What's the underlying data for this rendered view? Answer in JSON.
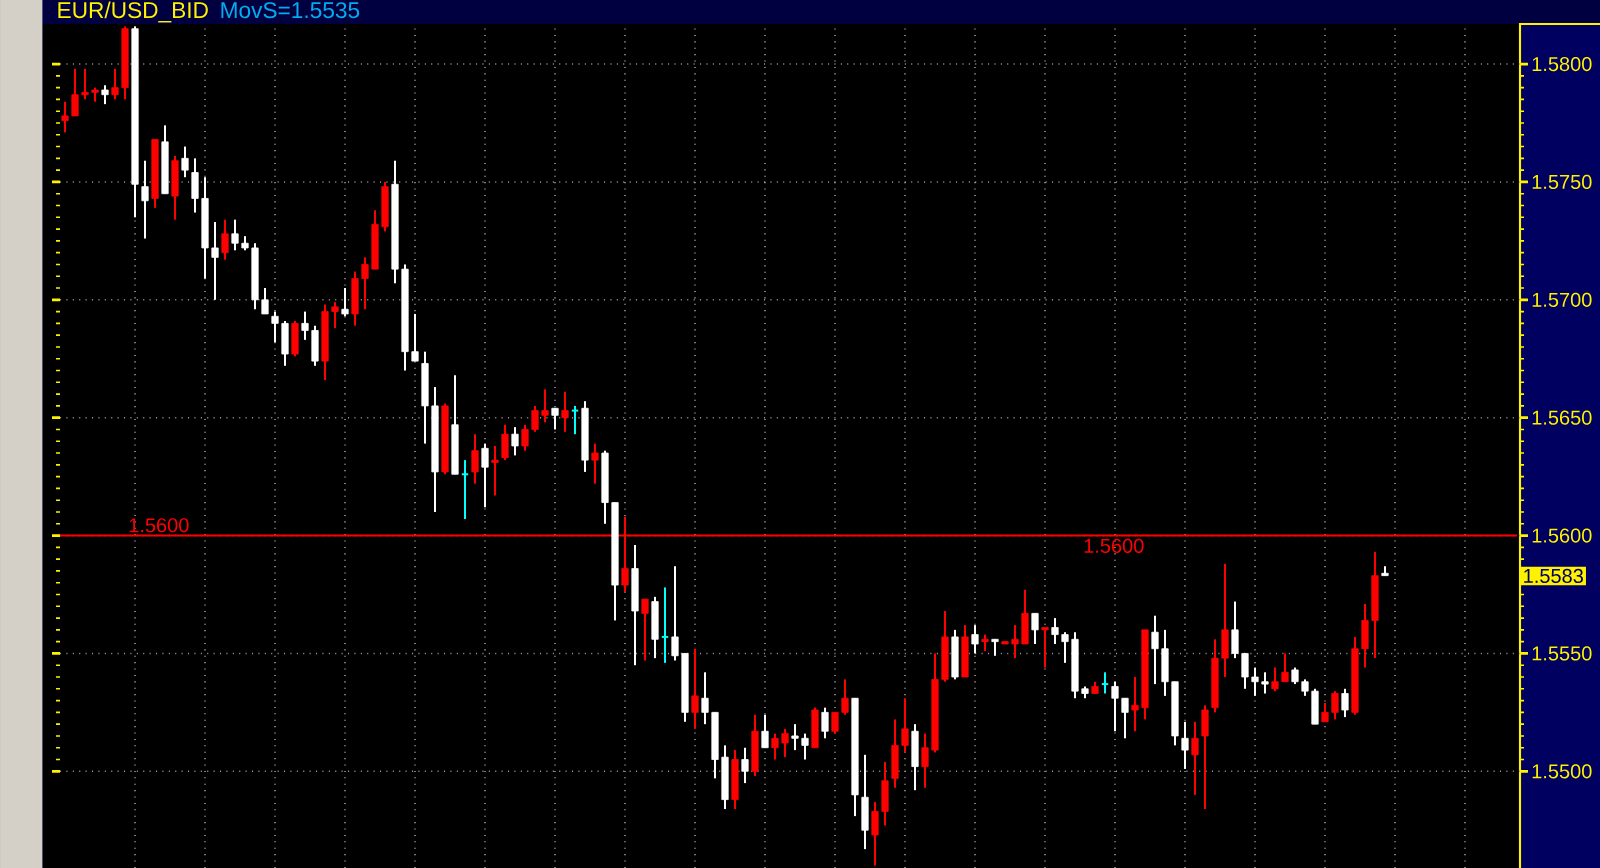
{
  "chart_data": {
    "type": "candlestick",
    "title": "EUR/USD_BID",
    "subtitle": "MovS=1.5535",
    "categories": [
      null,
      null,
      null,
      null,
      null,
      null,
      null,
      null,
      null,
      null,
      null,
      null,
      null,
      null,
      null,
      null,
      null,
      null,
      null,
      null,
      null,
      null,
      null,
      null,
      null,
      null,
      null,
      null,
      null,
      null,
      null,
      null,
      null,
      null,
      null,
      null,
      null,
      null,
      null,
      null,
      null,
      null,
      null,
      null,
      null,
      null,
      null,
      null,
      null,
      null,
      null,
      null,
      null,
      null,
      null,
      null,
      null,
      null,
      null,
      null,
      null,
      null,
      null,
      null,
      null,
      null,
      null,
      null,
      null,
      null,
      null,
      null,
      null,
      null,
      null,
      null,
      null,
      null,
      null,
      null,
      null,
      null,
      null,
      null,
      null,
      null,
      null,
      null,
      null,
      null,
      null,
      null,
      null,
      null,
      null,
      null,
      null,
      null,
      null,
      null,
      null,
      null,
      null,
      null,
      null,
      null,
      null,
      null,
      null,
      null,
      null,
      null,
      null,
      null,
      null,
      null,
      null,
      null,
      null,
      null,
      null,
      null,
      null,
      null,
      null,
      null,
      null,
      null,
      null,
      null,
      null,
      null,
      null,
      null,
      null,
      null,
      null,
      null,
      null,
      null,
      null,
      null,
      null,
      null,
      null,
      null
    ],
    "ohlc": [
      [
        1.5776,
        1.5784,
        1.5771,
        1.5778
      ],
      [
        1.5778,
        1.5798,
        1.5778,
        1.5787
      ],
      [
        1.5787,
        1.5798,
        1.5785,
        1.5788
      ],
      [
        1.5788,
        1.579,
        1.5784,
        1.5789
      ],
      [
        1.5789,
        1.5791,
        1.5783,
        1.5787
      ],
      [
        1.5787,
        1.5798,
        1.5785,
        1.579
      ],
      [
        1.579,
        1.5816,
        1.5785,
        1.5815
      ],
      [
        1.5815,
        1.5816,
        1.5735,
        1.5749
      ],
      [
        1.5748,
        1.5759,
        1.5726,
        1.5742
      ],
      [
        1.5743,
        1.5768,
        1.5739,
        1.5768
      ],
      [
        1.5767,
        1.5774,
        1.5745,
        1.5745
      ],
      [
        1.5744,
        1.5761,
        1.5734,
        1.5759
      ],
      [
        1.576,
        1.5765,
        1.5752,
        1.5755
      ],
      [
        1.5754,
        1.576,
        1.5737,
        1.5743
      ],
      [
        1.5743,
        1.5752,
        1.5709,
        1.5722
      ],
      [
        1.5722,
        1.5733,
        1.57,
        1.5718
      ],
      [
        1.572,
        1.5734,
        1.5717,
        1.5728
      ],
      [
        1.5728,
        1.5734,
        1.5721,
        1.5724
      ],
      [
        1.5724,
        1.5727,
        1.5721,
        1.5722
      ],
      [
        1.5722,
        1.5724,
        1.5696,
        1.57
      ],
      [
        1.57,
        1.5705,
        1.5694,
        1.5694
      ],
      [
        1.5693,
        1.5695,
        1.5682,
        1.569
      ],
      [
        1.569,
        1.5691,
        1.5672,
        1.5677
      ],
      [
        1.5677,
        1.5691,
        1.5676,
        1.569
      ],
      [
        1.569,
        1.5695,
        1.5683,
        1.5687
      ],
      [
        1.5687,
        1.5689,
        1.5672,
        1.5674
      ],
      [
        1.5674,
        1.5698,
        1.5666,
        1.5695
      ],
      [
        1.5695,
        1.5699,
        1.5688,
        1.5697
      ],
      [
        1.5696,
        1.5705,
        1.5693,
        1.5694
      ],
      [
        1.5694,
        1.5712,
        1.5689,
        1.5709
      ],
      [
        1.5709,
        1.5718,
        1.5696,
        1.5715
      ],
      [
        1.5713,
        1.5738,
        1.5713,
        1.5732
      ],
      [
        1.5731,
        1.575,
        1.5729,
        1.5748
      ],
      [
        1.5749,
        1.5759,
        1.5707,
        1.5713
      ],
      [
        1.5713,
        1.5715,
        1.567,
        1.5678
      ],
      [
        1.5678,
        1.5694,
        1.5674,
        1.5674
      ],
      [
        1.5673,
        1.5678,
        1.5639,
        1.5655
      ],
      [
        1.5655,
        1.5663,
        1.561,
        1.5627
      ],
      [
        1.5627,
        1.5656,
        1.5626,
        1.5655
      ],
      [
        1.5647,
        1.5668,
        1.5626,
        1.5626
      ],
      [
        1.5626,
        1.5632,
        1.5607,
        1.5626
      ],
      [
        1.5627,
        1.5643,
        1.5622,
        1.5636
      ],
      [
        1.5637,
        1.5639,
        1.5612,
        1.5629
      ],
      [
        1.5631,
        1.5638,
        1.5617,
        1.5632
      ],
      [
        1.5633,
        1.5647,
        1.5632,
        1.5643
      ],
      [
        1.5643,
        1.5646,
        1.5634,
        1.5638
      ],
      [
        1.5638,
        1.5647,
        1.5636,
        1.5645
      ],
      [
        1.5645,
        1.5655,
        1.5644,
        1.5653
      ],
      [
        1.5651,
        1.5662,
        1.5648,
        1.5653
      ],
      [
        1.5654,
        1.5654,
        1.5645,
        1.5651
      ],
      [
        1.565,
        1.5661,
        1.5644,
        1.5653
      ],
      [
        1.5653,
        1.5655,
        1.5643,
        1.5653
      ],
      [
        1.5654,
        1.5657,
        1.5627,
        1.5632
      ],
      [
        1.5632,
        1.5639,
        1.5622,
        1.5635
      ],
      [
        1.5635,
        1.5636,
        1.5605,
        1.5614
      ],
      [
        1.5614,
        1.5614,
        1.5564,
        1.5579
      ],
      [
        1.5579,
        1.5608,
        1.5576,
        1.5586
      ],
      [
        1.5586,
        1.5596,
        1.5545,
        1.5568
      ],
      [
        1.5567,
        1.5573,
        1.5547,
        1.5573
      ],
      [
        1.5572,
        1.5574,
        1.5548,
        1.5556
      ],
      [
        1.5557,
        1.5578,
        1.5546,
        1.5557
      ],
      [
        1.5557,
        1.5587,
        1.5547,
        1.5549
      ],
      [
        1.555,
        1.555,
        1.5521,
        1.5525
      ],
      [
        1.5525,
        1.5552,
        1.5518,
        1.5532
      ],
      [
        1.5531,
        1.5542,
        1.552,
        1.5525
      ],
      [
        1.5525,
        1.5525,
        1.5497,
        1.5505
      ],
      [
        1.5506,
        1.5511,
        1.5484,
        1.5488
      ],
      [
        1.5488,
        1.5509,
        1.5484,
        1.5505
      ],
      [
        1.5505,
        1.551,
        1.5495,
        1.55
      ],
      [
        1.55,
        1.5524,
        1.5498,
        1.5517
      ],
      [
        1.5517,
        1.5524,
        1.551,
        1.551
      ],
      [
        1.551,
        1.5516,
        1.5505,
        1.5514
      ],
      [
        1.5512,
        1.5518,
        1.5506,
        1.5516
      ],
      [
        1.5515,
        1.552,
        1.5509,
        1.5514
      ],
      [
        1.5514,
        1.5516,
        1.5505,
        1.5511
      ],
      [
        1.551,
        1.5527,
        1.551,
        1.5526
      ],
      [
        1.5525,
        1.5527,
        1.5514,
        1.5517
      ],
      [
        1.5517,
        1.5525,
        1.5516,
        1.5525
      ],
      [
        1.5525,
        1.5539,
        1.5524,
        1.5531
      ],
      [
        1.5531,
        1.5531,
        1.5481,
        1.549
      ],
      [
        1.5489,
        1.5507,
        1.5467,
        1.5475
      ],
      [
        1.5473,
        1.5487,
        1.546,
        1.5483
      ],
      [
        1.5483,
        1.5504,
        1.5477,
        1.5496
      ],
      [
        1.5497,
        1.5522,
        1.5493,
        1.5511
      ],
      [
        1.5511,
        1.5531,
        1.5508,
        1.5518
      ],
      [
        1.5517,
        1.552,
        1.5492,
        1.5502
      ],
      [
        1.5502,
        1.5516,
        1.5493,
        1.551
      ],
      [
        1.5509,
        1.555,
        1.5508,
        1.5539
      ],
      [
        1.5539,
        1.5568,
        1.5538,
        1.5557
      ],
      [
        1.5557,
        1.556,
        1.5539,
        1.554
      ],
      [
        1.554,
        1.5562,
        1.554,
        1.5557
      ],
      [
        1.5558,
        1.5562,
        1.555,
        1.5554
      ],
      [
        1.5555,
        1.5558,
        1.5551,
        1.5556
      ],
      [
        1.5556,
        1.5556,
        1.5549,
        1.5555
      ],
      [
        1.5554,
        1.5555,
        1.5554,
        1.5555
      ],
      [
        1.5554,
        1.5562,
        1.5548,
        1.5556
      ],
      [
        1.5554,
        1.5577,
        1.5554,
        1.5567
      ],
      [
        1.5567,
        1.5567,
        1.5554,
        1.556
      ],
      [
        1.556,
        1.5561,
        1.5544,
        1.5561
      ],
      [
        1.5561,
        1.5565,
        1.5554,
        1.5558
      ],
      [
        1.5558,
        1.5559,
        1.5546,
        1.5555
      ],
      [
        1.5556,
        1.5559,
        1.5531,
        1.5534
      ],
      [
        1.5535,
        1.5536,
        1.5531,
        1.5533
      ],
      [
        1.5533,
        1.5538,
        1.5533,
        1.5536
      ],
      [
        1.5537,
        1.5542,
        1.5533,
        1.5537
      ],
      [
        1.5536,
        1.5538,
        1.5517,
        1.5531
      ],
      [
        1.5531,
        1.5531,
        1.5514,
        1.5525
      ],
      [
        1.5526,
        1.554,
        1.5517,
        1.5528
      ],
      [
        1.5527,
        1.556,
        1.5522,
        1.556
      ],
      [
        1.5559,
        1.5566,
        1.5537,
        1.5552
      ],
      [
        1.5552,
        1.556,
        1.5532,
        1.5538
      ],
      [
        1.5538,
        1.5538,
        1.5511,
        1.5515
      ],
      [
        1.5514,
        1.5521,
        1.5501,
        1.5509
      ],
      [
        1.5507,
        1.5521,
        1.549,
        1.5514
      ],
      [
        1.5515,
        1.5528,
        1.5484,
        1.5526
      ],
      [
        1.5527,
        1.5556,
        1.5525,
        1.5548
      ],
      [
        1.5548,
        1.5588,
        1.554,
        1.556
      ],
      [
        1.556,
        1.5572,
        1.5548,
        1.555
      ],
      [
        1.555,
        1.555,
        1.5535,
        1.554
      ],
      [
        1.554,
        1.5544,
        1.5532,
        1.5538
      ],
      [
        1.5538,
        1.5542,
        1.5533,
        1.5537
      ],
      [
        1.5535,
        1.5544,
        1.5534,
        1.5538
      ],
      [
        1.5538,
        1.555,
        1.5538,
        1.5542
      ],
      [
        1.5543,
        1.5544,
        1.5537,
        1.5538
      ],
      [
        1.5538,
        1.5539,
        1.5532,
        1.5534
      ],
      [
        1.5534,
        1.5535,
        1.552,
        1.552
      ],
      [
        1.5521,
        1.5529,
        1.5521,
        1.5525
      ],
      [
        1.5525,
        1.5534,
        1.5522,
        1.5533
      ],
      [
        1.5533,
        1.5535,
        1.5523,
        1.5526
      ],
      [
        1.5525,
        1.5557,
        1.5524,
        1.5552
      ],
      [
        1.5552,
        1.5571,
        1.5544,
        1.5564
      ],
      [
        1.5564,
        1.5593,
        1.5548,
        1.5583
      ],
      [
        1.5584,
        1.5587,
        1.5583,
        1.5583
      ],
      null,
      null,
      null,
      null,
      null,
      null,
      null,
      null,
      null,
      null,
      null,
      null,
      null
    ],
    "colors": [
      "#ff0000",
      "#ff0000",
      "#ff0000",
      "#ff0000",
      "#ffffff",
      "#ff0000",
      "#ff0000",
      "#ffffff",
      "#ffffff",
      "#ff0000",
      "#ffffff",
      "#ff0000",
      "#ffffff",
      "#ffffff",
      "#ffffff",
      "#ffffff",
      "#ff0000",
      "#ffffff",
      "#ffffff",
      "#ffffff",
      "#ffffff",
      "#ffffff",
      "#ffffff",
      "#ff0000",
      "#ffffff",
      "#ffffff",
      "#ff0000",
      "#ff0000",
      "#ffffff",
      "#ff0000",
      "#ff0000",
      "#ff0000",
      "#ff0000",
      "#ffffff",
      "#ffffff",
      "#ffffff",
      "#ffffff",
      "#ffffff",
      "#ff0000",
      "#ffffff",
      "#00ffff",
      "#ff0000",
      "#ffffff",
      "#ff0000",
      "#ff0000",
      "#ffffff",
      "#ff0000",
      "#ff0000",
      "#ff0000",
      "#ffffff",
      "#ff0000",
      "#00ffff",
      "#ffffff",
      "#ff0000",
      "#ffffff",
      "#ffffff",
      "#ff0000",
      "#ffffff",
      "#ff0000",
      "#ffffff",
      "#00ffff",
      "#ffffff",
      "#ffffff",
      "#ff0000",
      "#ffffff",
      "#ffffff",
      "#ffffff",
      "#ff0000",
      "#ffffff",
      "#ff0000",
      "#ffffff",
      "#ff0000",
      "#ff0000",
      "#ffffff",
      "#ffffff",
      "#ff0000",
      "#ffffff",
      "#ff0000",
      "#ff0000",
      "#ffffff",
      "#ffffff",
      "#ff0000",
      "#ff0000",
      "#ff0000",
      "#ff0000",
      "#ffffff",
      "#ff0000",
      "#ff0000",
      "#ff0000",
      "#ffffff",
      "#ff0000",
      "#ffffff",
      "#ff0000",
      "#ffffff",
      "#ff0000",
      "#ff0000",
      "#ff0000",
      "#ffffff",
      "#ff0000",
      "#ffffff",
      "#ffffff",
      "#ffffff",
      "#ffffff",
      "#ff0000",
      "#00ffff",
      "#ffffff",
      "#ffffff",
      "#ff0000",
      "#ff0000",
      "#ffffff",
      "#ffffff",
      "#ffffff",
      "#ffffff",
      "#ff0000",
      "#ff0000",
      "#ff0000",
      "#ff0000",
      "#ffffff",
      "#ffffff",
      "#ffffff",
      "#ffffff",
      "#ff0000",
      "#ff0000",
      "#ffffff",
      "#ffffff",
      "#ffffff",
      "#ff0000",
      "#ff0000",
      "#ffffff",
      "#ff0000",
      "#ff0000",
      "#ff0000",
      "#ffffff",
      null,
      null,
      null,
      null,
      null,
      null,
      null,
      null,
      null,
      null,
      null,
      null,
      null
    ],
    "ylim": [
      1.5459,
      1.5817
    ],
    "yticks": [
      {
        "value": 1.55,
        "label": "1.5500"
      },
      {
        "value": 1.555,
        "label": "1.5550"
      },
      {
        "value": 1.56,
        "label": "1.5600"
      },
      {
        "value": 1.565,
        "label": "1.5650"
      },
      {
        "value": 1.57,
        "label": "1.5700"
      },
      {
        "value": 1.575,
        "label": "1.5750"
      },
      {
        "value": 1.58,
        "label": "1.5800"
      }
    ],
    "tick_labels": "y",
    "grid": true,
    "ref_lines": [
      {
        "axis": "y",
        "value": 1.56,
        "label": "1.5600",
        "color": "#ff0000"
      }
    ],
    "annotations": [
      {
        "text": "1.5600",
        "y": 1.56
      },
      "1.5583"
    ]
  }
}
